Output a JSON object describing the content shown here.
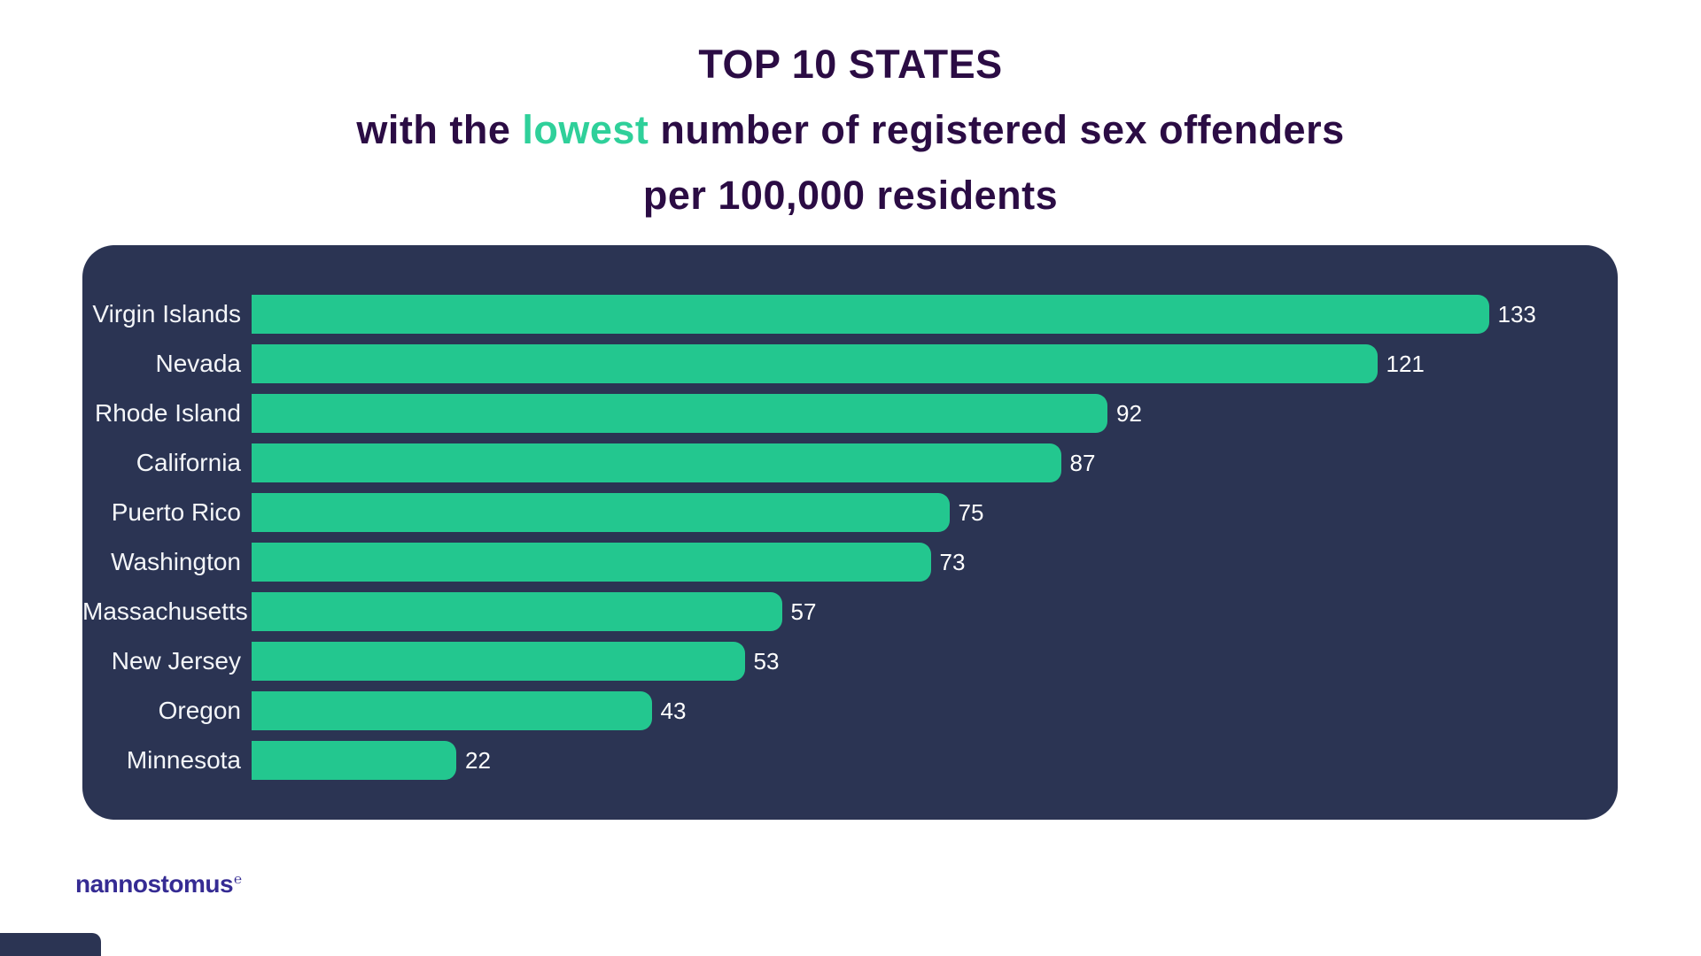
{
  "title": {
    "line1": "TOP 10 STATES",
    "line2_pre": "with the ",
    "line2_accent": "lowest",
    "line2_post": " number of registered sex offenders",
    "line3": "per 100,000 residents"
  },
  "chart_data": {
    "type": "bar",
    "orientation": "horizontal",
    "title": "TOP 10 STATES with the lowest number of registered sex offenders per 100,000 residents",
    "categories": [
      "Virgin Islands",
      "Nevada",
      "Rhode Island",
      "California",
      "Puerto Rico",
      "Washington",
      "Massachusetts",
      "New Jersey",
      "Oregon",
      "Minnesota"
    ],
    "values": [
      133,
      121,
      92,
      87,
      75,
      73,
      57,
      53,
      43,
      22
    ],
    "xlabel": "",
    "ylabel": "",
    "xlim": [
      0,
      140
    ],
    "grid": false,
    "legend": false,
    "value_labels_shown": true,
    "bar_color": "#23C78F",
    "panel_color": "#2B3453"
  },
  "colors": {
    "background": "#FFFFFF",
    "panel": "#2B3453",
    "bar_green": "#23C78F",
    "accent_green": "#2FD09A",
    "title_purple": "#2B0C44",
    "label_white": "#F4F6F9",
    "logo_indigo": "#352B93"
  },
  "footer": {
    "logo_text": "nannostomus",
    "logo_mark": "℮"
  }
}
